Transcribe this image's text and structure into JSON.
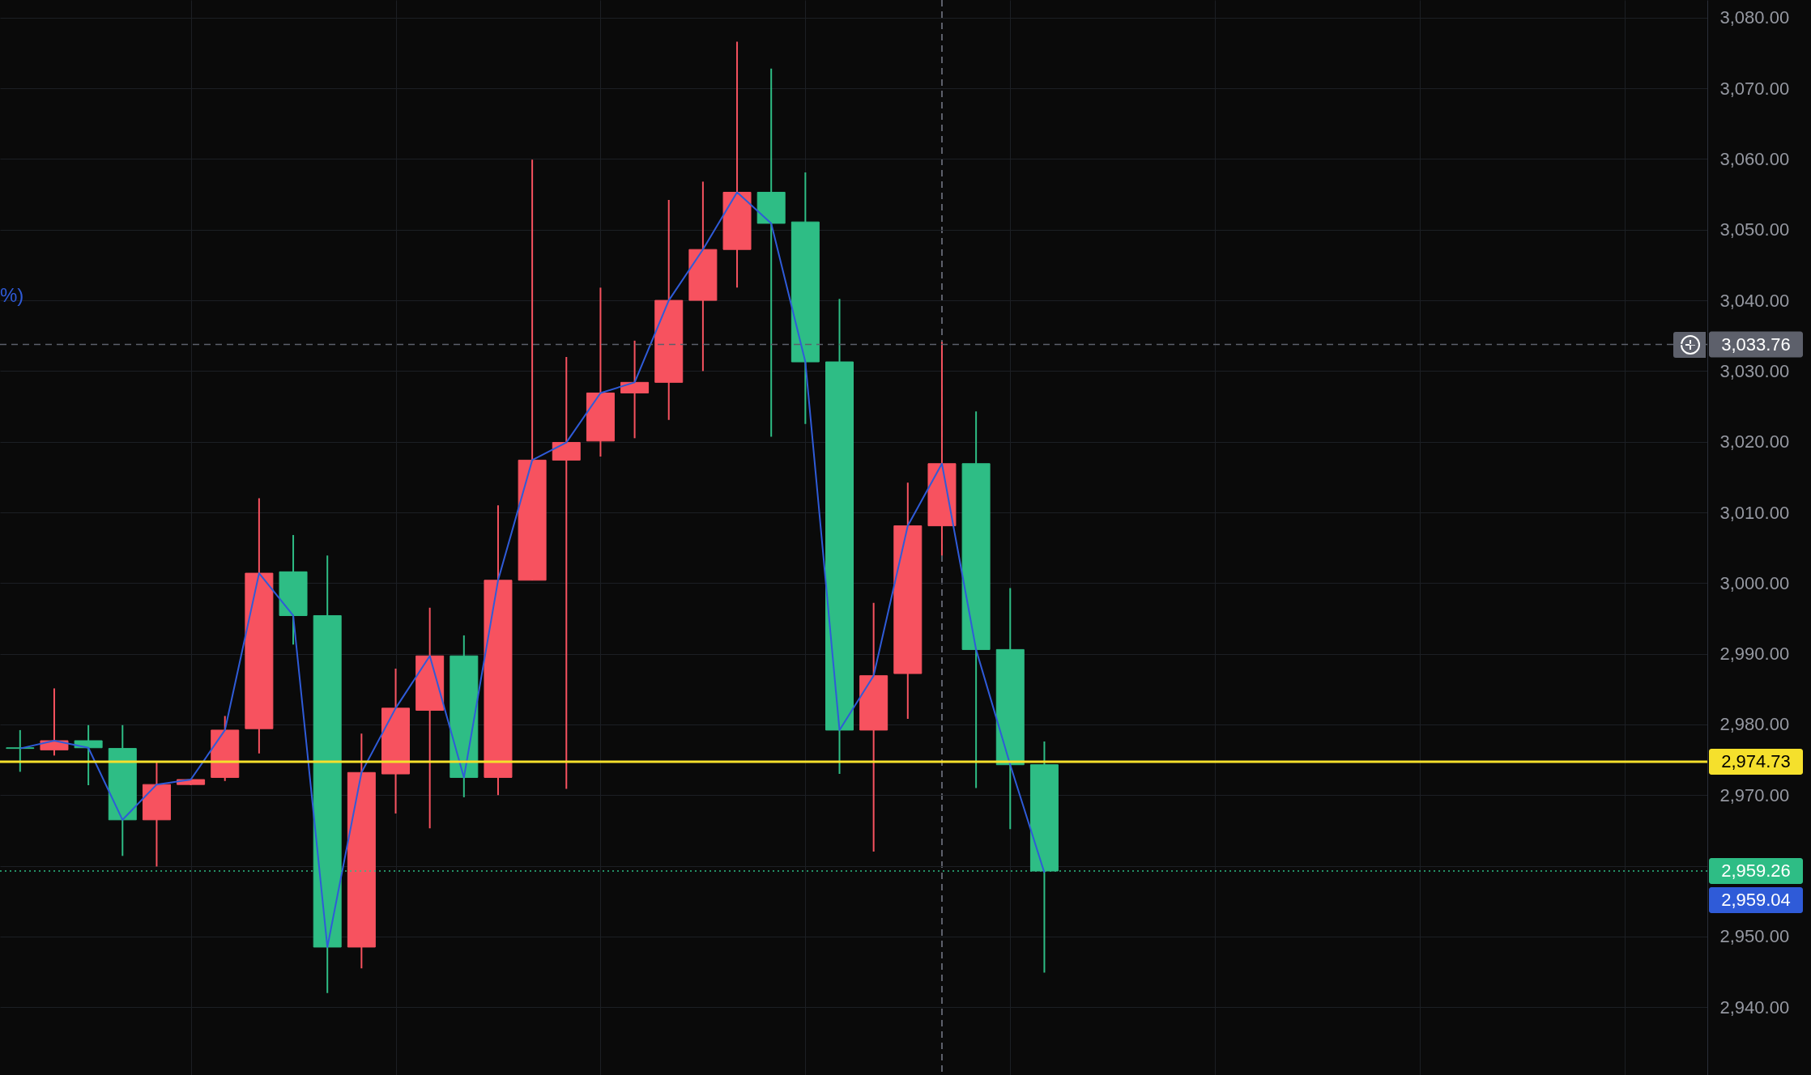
{
  "chart_data": {
    "type": "candlestick",
    "categories": [
      null,
      null,
      null,
      null,
      null,
      null,
      null,
      null,
      null,
      null,
      null,
      null,
      null,
      null,
      null,
      null,
      null,
      null,
      null,
      null,
      null,
      null,
      null,
      null,
      null,
      null,
      null,
      null,
      null,
      null,
      null
    ],
    "ohlc": [
      [
        2976.7,
        2979.2,
        2973.3,
        2976.6
      ],
      [
        2976.4,
        2985.1,
        2975.6,
        2977.7
      ],
      [
        2977.7,
        2979.9,
        2971.4,
        2976.7
      ],
      [
        2976.6,
        2979.9,
        2961.4,
        2966.5
      ],
      [
        2966.5,
        2974.6,
        2959.9,
        2971.5
      ],
      [
        2971.5,
        2972.3,
        2971.4,
        2972.2
      ],
      [
        2972.5,
        2981.2,
        2972.0,
        2979.2
      ],
      [
        2979.4,
        3012.0,
        2975.9,
        3001.4
      ],
      [
        3001.6,
        3006.8,
        2991.3,
        2995.4
      ],
      [
        2995.4,
        3003.9,
        2942.0,
        2948.5
      ],
      [
        2948.5,
        2978.7,
        2945.5,
        2973.2
      ],
      [
        2973.0,
        2987.9,
        2967.4,
        2982.3
      ],
      [
        2982.0,
        2996.5,
        2965.3,
        2989.7
      ],
      [
        2989.7,
        2992.6,
        2969.7,
        2972.5
      ],
      [
        2972.5,
        3011.0,
        2970.0,
        3000.4
      ],
      [
        3000.4,
        3059.9,
        3000.4,
        3017.4
      ],
      [
        3017.4,
        3032.0,
        2970.9,
        3019.9
      ],
      [
        3020.1,
        3041.8,
        3017.9,
        3026.9
      ],
      [
        3026.9,
        3034.3,
        3020.5,
        3028.4
      ],
      [
        3028.4,
        3054.2,
        3023.1,
        3040.0
      ],
      [
        3040.0,
        3056.8,
        3030.0,
        3047.2
      ],
      [
        3047.2,
        3076.6,
        3041.8,
        3055.3
      ],
      [
        3055.3,
        3072.8,
        3020.7,
        3050.9
      ],
      [
        3051.1,
        3058.1,
        3022.5,
        3031.3
      ],
      [
        3031.3,
        3040.2,
        2973.0,
        2979.2
      ],
      [
        2979.2,
        2997.2,
        2962.0,
        2986.9
      ],
      [
        2987.2,
        3014.2,
        2980.8,
        3008.1
      ],
      [
        3008.1,
        3034.1,
        3003.9,
        3016.9
      ],
      [
        3016.9,
        3024.3,
        2971.0,
        2990.6
      ],
      [
        2990.6,
        2999.3,
        2965.2,
        2974.3
      ],
      [
        2974.3,
        2977.6,
        2944.9,
        2959.26
      ]
    ],
    "colors": [
      "#2ebd85",
      "#f7525f",
      "#2ebd85",
      "#2ebd85",
      "#f7525f",
      "#f7525f",
      "#f7525f",
      "#f7525f",
      "#2ebd85",
      "#2ebd85",
      "#f7525f",
      "#f7525f",
      "#f7525f",
      "#2ebd85",
      "#f7525f",
      "#f7525f",
      "#f7525f",
      "#f7525f",
      "#f7525f",
      "#f7525f",
      "#f7525f",
      "#f7525f",
      "#2ebd85",
      "#2ebd85",
      "#2ebd85",
      "#f7525f",
      "#f7525f",
      "#f7525f",
      "#2ebd85",
      "#2ebd85",
      "#2ebd85"
    ],
    "series": [
      {
        "type": "line",
        "color": "#2f5bd8",
        "values": [
          2976.6,
          2977.7,
          2976.7,
          2966.5,
          2971.5,
          2972.2,
          2979.2,
          3001.4,
          2995.4,
          2948.5,
          2973.2,
          2982.3,
          2989.7,
          2972.5,
          3000.4,
          3017.4,
          3019.9,
          3026.9,
          3028.4,
          3040.0,
          3047.2,
          3055.3,
          3050.9,
          3031.3,
          2979.2,
          2986.9,
          3008.1,
          3016.9,
          2990.6,
          2974.3,
          2959.04
        ]
      }
    ],
    "ylim": [
      2930.4,
      3082.5
    ],
    "yticks": [
      {
        "value": 2940,
        "label": "2,940.00"
      },
      {
        "value": 2950,
        "label": "2,950.00"
      },
      {
        "value": 2960,
        "label": null
      },
      {
        "value": 2970,
        "label": "2,970.00"
      },
      {
        "value": 2980,
        "label": "2,980.00"
      },
      {
        "value": 2990,
        "label": "2,990.00"
      },
      {
        "value": 3000,
        "label": "3,000.00"
      },
      {
        "value": 3010,
        "label": "3,010.00"
      },
      {
        "value": 3020,
        "label": "3,020.00"
      },
      {
        "value": 3030,
        "label": "3,030.00"
      },
      {
        "value": 3040,
        "label": "3,040.00"
      },
      {
        "value": 3050,
        "label": "3,050.00"
      },
      {
        "value": 3060,
        "label": "3,060.00"
      },
      {
        "value": 3070,
        "label": "3,070.00"
      },
      {
        "value": 3080,
        "label": "3,080.00"
      }
    ],
    "tick_labels": "y",
    "grid": true,
    "ref_lines": [
      {
        "axis": "y",
        "value": 2974.73,
        "label": "2,974.73",
        "color": "#f5e02c",
        "line_style": "solid"
      },
      {
        "axis": "y",
        "value": 2959.26,
        "label": "2,959.26",
        "color": "#2ebd85",
        "line_style": "dotted"
      },
      {
        "axis": "y",
        "value": 3033.76,
        "label": "3,033.76",
        "color": "#5d606b",
        "line_style": "dashed"
      }
    ],
    "annotations": [
      "%)",
      "2,959.04"
    ]
  }
}
